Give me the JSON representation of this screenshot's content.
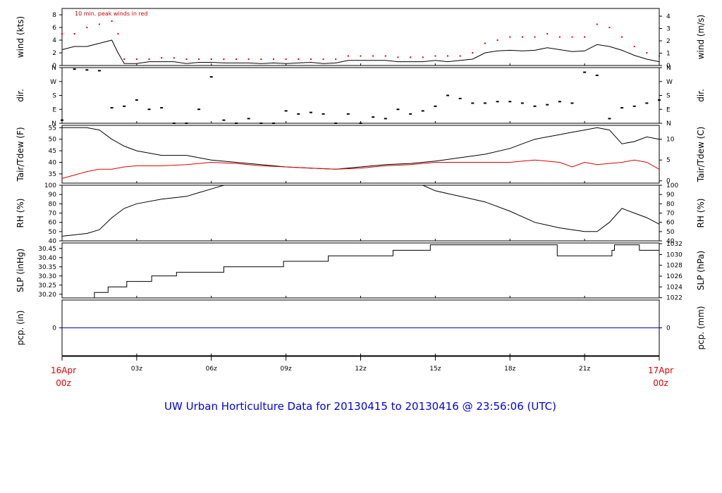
{
  "title": "UW Urban Horticulture Data for 20130415  to  20130416 @ 23:56:06  (UTC)",
  "x_ticks": [
    "03z",
    "06z",
    "09z",
    "12z",
    "15z",
    "18z",
    "21z"
  ],
  "x_start": [
    "16Apr",
    "00z"
  ],
  "x_end": [
    "17Apr",
    "00z"
  ],
  "colors": {
    "black": "#000000",
    "red": "#dd0000",
    "blue": "#0000cc",
    "title": "#0000ee"
  },
  "chart_data": [
    {
      "type": "line",
      "panel": "wind",
      "ylabel_left": "wind (kts)",
      "ylabel_right": "wind (m/s)",
      "annotation": "10 min. peak winds in red",
      "ylim": [
        0,
        9
      ],
      "yticks_left": [
        "0",
        "2",
        "4",
        "6",
        "8"
      ],
      "yticks_right": [
        "0",
        "1",
        "2",
        "3",
        "4"
      ],
      "x": [
        0,
        0.5,
        1,
        1.5,
        2,
        2.25,
        2.5,
        3,
        3.5,
        4,
        4.5,
        5,
        5.5,
        6,
        6.5,
        7,
        7.5,
        8,
        8.5,
        9,
        9.5,
        10,
        10.5,
        11,
        11.5,
        12,
        12.5,
        13,
        13.5,
        14,
        14.5,
        15,
        15.5,
        16,
        16.5,
        17,
        17.5,
        18,
        18.5,
        19,
        19.5,
        20,
        20.5,
        21,
        21.5,
        22,
        22.5,
        23,
        23.5,
        24
      ],
      "series": [
        {
          "values": [
            2.5,
            3,
            3,
            3.5,
            4,
            2,
            0.3,
            0.3,
            0.6,
            0.6,
            0.6,
            0.3,
            0.5,
            0.5,
            0.4,
            0.4,
            0.4,
            0.3,
            0.4,
            0.3,
            0.4,
            0.5,
            0.3,
            0.4,
            0.8,
            0.8,
            0.8,
            0.8,
            0.6,
            0.6,
            0.6,
            0.8,
            0.6,
            0.8,
            1.0,
            2.0,
            2.3,
            2.4,
            2.3,
            2.4,
            2.8,
            2.5,
            2.2,
            2.3,
            3.3,
            3.0,
            2.4,
            1.6,
            1.0,
            0.6
          ]
        },
        {
          "values": [
            5,
            5,
            6,
            6.5,
            7,
            5,
            1,
            1,
            1,
            1.2,
            1.2,
            1,
            1,
            1,
            1,
            1,
            1,
            1,
            1,
            1,
            1,
            1,
            1,
            1,
            1.5,
            1.5,
            1.5,
            1.5,
            1.3,
            1.3,
            1.3,
            1.5,
            1.5,
            1.5,
            2,
            3.5,
            4,
            4.5,
            4.5,
            4.5,
            5,
            4.5,
            4.5,
            4.5,
            6.5,
            6,
            4.5,
            3,
            2,
            1.5
          ]
        }
      ]
    },
    {
      "type": "scatter",
      "panel": "dir",
      "ylabel_left": "dir.",
      "ylabel_right": "dir.",
      "ylim": [
        0,
        360
      ],
      "yticks_left": [
        "N",
        "E",
        "S",
        "W",
        "N"
      ],
      "yticks_right": [
        "N",
        "E",
        "S",
        "W",
        "N"
      ],
      "x": [
        0,
        0.5,
        1,
        1.5,
        2,
        2.5,
        3,
        3.5,
        4,
        4.5,
        5,
        5.5,
        6,
        6.5,
        7,
        7.5,
        8,
        8.5,
        9,
        9.5,
        10,
        10.5,
        11,
        11.5,
        12,
        12.5,
        13,
        13.5,
        14,
        14.5,
        15,
        15.5,
        16,
        16.5,
        17,
        17.5,
        18,
        18.5,
        19,
        19.5,
        20,
        20.5,
        21,
        21.5,
        22,
        22.5,
        23,
        23.5,
        24
      ],
      "values": [
        20,
        350,
        345,
        340,
        100,
        110,
        150,
        90,
        100,
        0,
        0,
        90,
        300,
        20,
        0,
        30,
        0,
        0,
        80,
        60,
        70,
        60,
        0,
        60,
        0,
        40,
        30,
        90,
        60,
        80,
        110,
        180,
        160,
        130,
        130,
        140,
        140,
        130,
        110,
        120,
        140,
        130,
        330,
        310,
        30,
        100,
        110,
        130,
        150
      ]
    },
    {
      "type": "line",
      "panel": "temp",
      "ylabel_left": "Tair/Tdew (F)",
      "ylabel_right": "Tair/Tdew (C)",
      "ylim": [
        31,
        56
      ],
      "yticks_left": [
        "35",
        "40",
        "45",
        "50",
        "55"
      ],
      "yticks_right": [
        "0",
        "5",
        "10"
      ],
      "x": [
        0,
        1,
        1.5,
        2,
        2.5,
        3,
        4,
        5,
        6,
        7,
        8,
        9,
        10,
        11,
        12,
        13,
        14,
        15,
        16,
        17,
        18,
        18.5,
        19,
        20,
        20.5,
        21,
        21.5,
        22,
        22.5,
        23,
        23.5,
        24
      ],
      "series": [
        {
          "values": [
            55,
            55,
            54,
            50,
            47,
            45,
            43,
            43,
            41,
            40,
            39,
            38,
            37.5,
            37,
            38,
            39,
            39.5,
            40.5,
            42,
            43.5,
            46,
            48,
            50,
            52,
            53,
            54,
            55,
            54,
            48,
            49,
            51,
            50
          ]
        },
        {
          "values": [
            33,
            36,
            37,
            37,
            38,
            38.5,
            38.5,
            39,
            40,
            39.5,
            38.5,
            38,
            37.5,
            37,
            37.5,
            38.5,
            39,
            40,
            40,
            40,
            40,
            40.5,
            41,
            40,
            38,
            40,
            39,
            39.5,
            40,
            41,
            40,
            37
          ]
        }
      ]
    },
    {
      "type": "line",
      "panel": "rh",
      "ylabel_left": "RH (%)",
      "ylabel_right": "RH (%)",
      "ylim": [
        40,
        100
      ],
      "yticks_left": [
        "40",
        "50",
        "60",
        "70",
        "80",
        "90",
        "100"
      ],
      "yticks_right": [
        "40",
        "50",
        "60",
        "70",
        "80",
        "90",
        "100"
      ],
      "x": [
        0,
        1,
        1.5,
        2,
        2.5,
        3,
        4,
        5,
        5.5,
        6,
        6.5,
        7,
        8,
        9,
        10,
        11,
        12,
        13,
        14,
        14.5,
        15,
        16,
        17,
        18,
        19,
        20,
        21,
        21.5,
        22,
        22.5,
        23,
        23.5,
        24
      ],
      "series": [
        {
          "values": [
            45,
            48,
            52,
            65,
            75,
            80,
            85,
            88,
            92,
            96,
            100,
            100,
            100,
            100,
            100,
            100,
            100,
            100,
            100,
            100,
            94,
            88,
            82,
            72,
            60,
            54,
            50,
            50,
            60,
            75,
            70,
            65,
            58
          ]
        }
      ]
    },
    {
      "type": "line",
      "panel": "slp",
      "ylabel_left": "SLP (inHg)",
      "ylabel_right": "SLP (hPa)",
      "ylim": [
        30.18,
        30.48
      ],
      "yticks_left": [
        "30.20",
        "30.25",
        "30.30",
        "30.35",
        "30.40",
        "30.45"
      ],
      "yticks_right": [
        "1022",
        "1024",
        "1026",
        "1028",
        "1030",
        "1032"
      ],
      "x": [
        0,
        1.3,
        1.3,
        1.85,
        1.85,
        2.6,
        2.6,
        3.6,
        3.6,
        4.6,
        4.6,
        6.5,
        6.5,
        8.9,
        8.9,
        10.7,
        10.7,
        13.3,
        13.3,
        14.8,
        14.8,
        19.9,
        19.9,
        22.1,
        22.1,
        22.2,
        22.2,
        23.2,
        23.2,
        24
      ],
      "series": [
        {
          "values": [
            30.18,
            30.18,
            30.21,
            30.21,
            30.24,
            30.24,
            30.27,
            30.27,
            30.3,
            30.3,
            30.32,
            30.32,
            30.35,
            30.35,
            30.38,
            30.38,
            30.41,
            30.41,
            30.44,
            30.44,
            30.47,
            30.47,
            30.41,
            30.41,
            30.44,
            30.44,
            30.47,
            30.47,
            30.44,
            30.44
          ]
        }
      ]
    },
    {
      "type": "line",
      "panel": "pcp",
      "ylabel_left": "pcp. (in)",
      "ylabel_right": "pcp. (mm)",
      "ylim": [
        -1,
        1
      ],
      "yticks_left": [
        "0"
      ],
      "yticks_right": [
        "0"
      ],
      "x": [
        0,
        24
      ],
      "series": [
        {
          "values": [
            0,
            0
          ]
        }
      ]
    }
  ]
}
